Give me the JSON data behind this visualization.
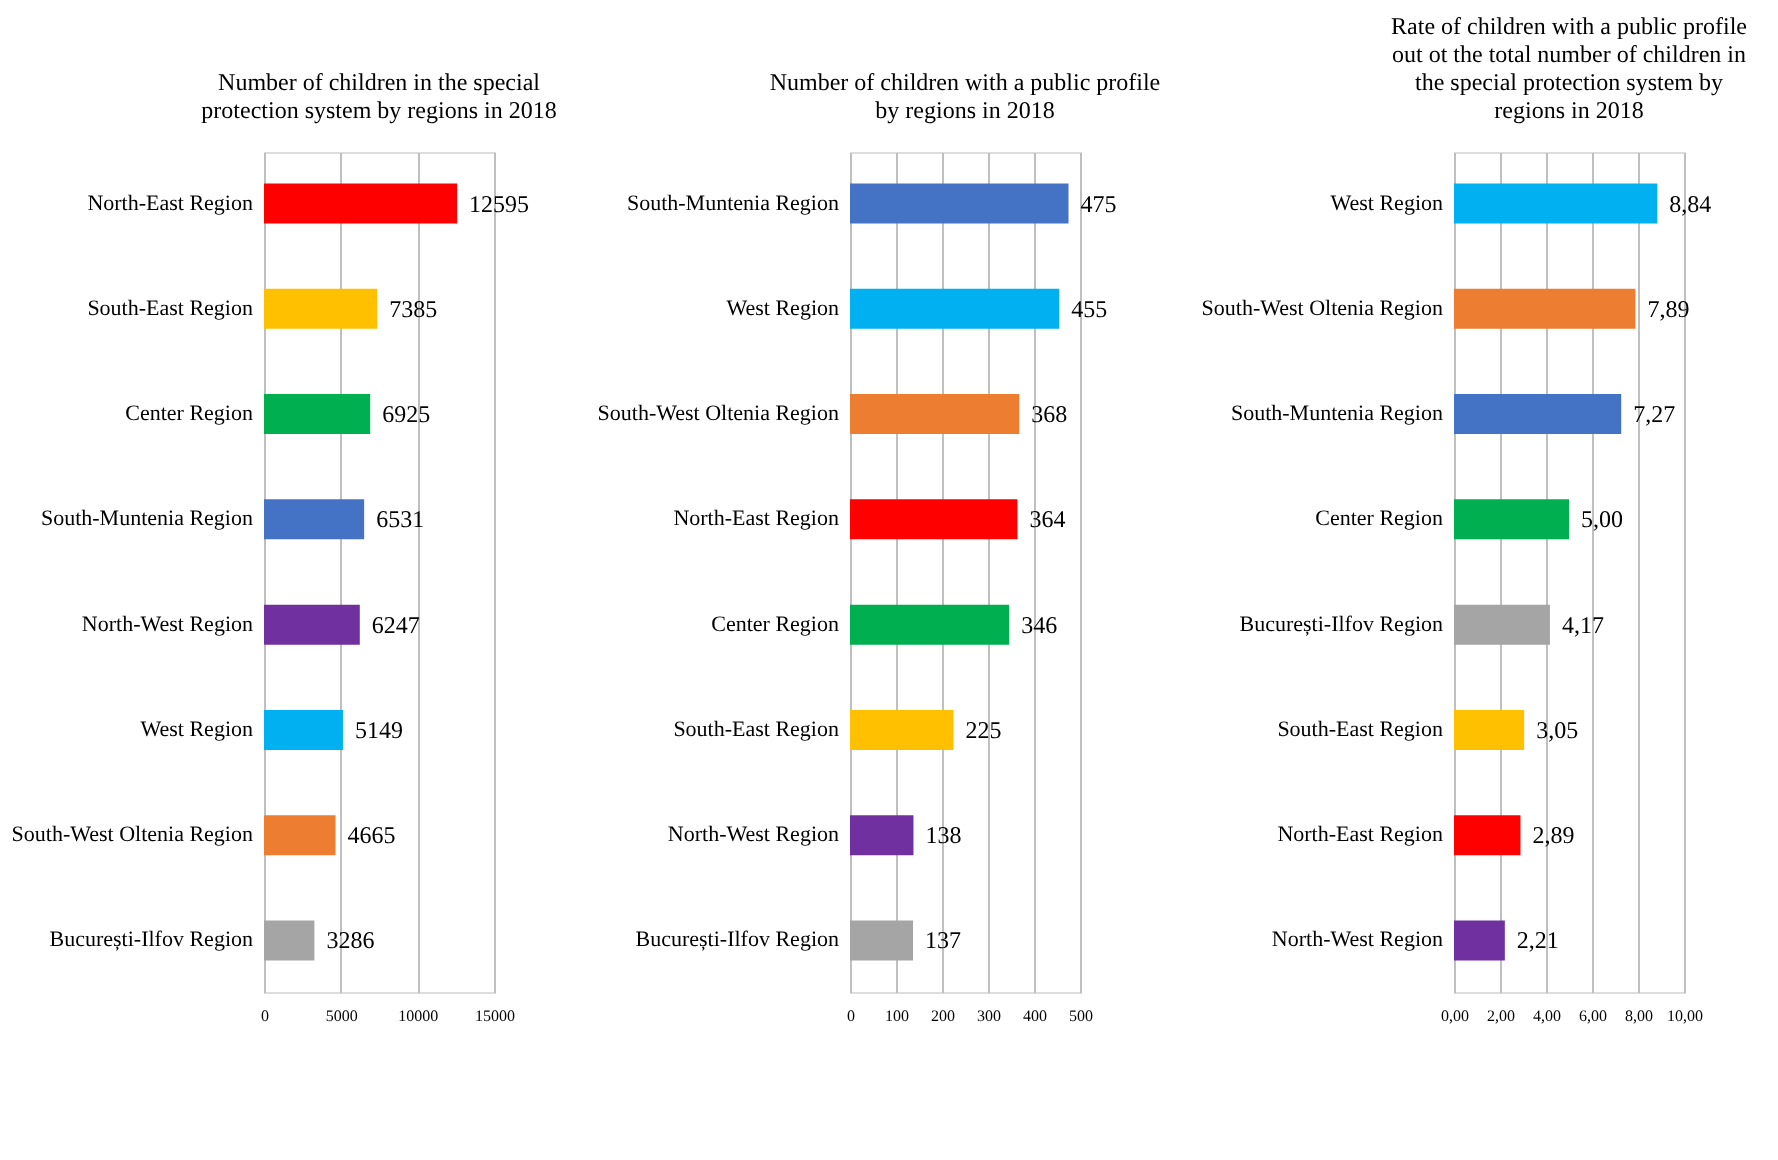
{
  "chart_data": [
    {
      "type": "bar",
      "orientation": "horizontal",
      "title": "Number of children in the special\nprotection system by regions in 2018",
      "categories": [
        "North-East Region",
        "South-East Region",
        "Center Region",
        "South-Muntenia Region",
        "North-West Region",
        "West Region",
        "South-West Oltenia Region",
        "București-Ilfov Region"
      ],
      "values": [
        12595,
        7385,
        6925,
        6531,
        6247,
        5149,
        4665,
        3286
      ],
      "colors": [
        "#ff0000",
        "#ffc000",
        "#00b050",
        "#4472c4",
        "#7030a0",
        "#00b0f0",
        "#ed7d31",
        "#a5a5a5"
      ],
      "xlim": [
        0,
        15000
      ],
      "xticks": [
        0,
        5000,
        10000,
        15000
      ],
      "grid": "x",
      "data_labels": true
    },
    {
      "type": "bar",
      "orientation": "horizontal",
      "title": "Number of children with a public profile\nby regions in 2018",
      "categories": [
        "South-Muntenia Region",
        "West Region",
        "South-West Oltenia Region",
        "North-East Region",
        "Center Region",
        "South-East Region",
        "North-West Region",
        "București-Ilfov Region"
      ],
      "values": [
        475,
        455,
        368,
        364,
        346,
        225,
        138,
        137
      ],
      "colors": [
        "#4472c4",
        "#00b0f0",
        "#ed7d31",
        "#ff0000",
        "#00b050",
        "#ffc000",
        "#7030a0",
        "#a5a5a5"
      ],
      "xlim": [
        0,
        500
      ],
      "xticks": [
        0,
        100,
        200,
        300,
        400,
        500
      ],
      "grid": "x",
      "data_labels": true
    },
    {
      "type": "bar",
      "orientation": "horizontal",
      "title": "Rate of children with a public profile\nout ot the total number of children in\nthe special protection system by\nregions in 2018",
      "categories": [
        "West Region",
        "South-West Oltenia Region",
        "South-Muntenia Region",
        "Center Region",
        "București-Ilfov Region",
        "South-East Region",
        "North-East Region",
        "North-West Region"
      ],
      "values": [
        8.84,
        7.89,
        7.27,
        5.0,
        4.17,
        3.05,
        2.89,
        2.21
      ],
      "value_labels": [
        "8,84",
        "7,89",
        "7,27",
        "5,00",
        "4,17",
        "3,05",
        "2,89",
        "2,21"
      ],
      "colors": [
        "#00b0f0",
        "#ed7d31",
        "#4472c4",
        "#00b050",
        "#a5a5a5",
        "#ffc000",
        "#ff0000",
        "#7030a0"
      ],
      "xlim": [
        0,
        10
      ],
      "xticks": [
        {
          "value": 0,
          "label": "0,00"
        },
        {
          "value": 2,
          "label": "2,00"
        },
        {
          "value": 4,
          "label": "4,00"
        },
        {
          "value": 6,
          "label": "6,00"
        },
        {
          "value": 8,
          "label": "8,00"
        },
        {
          "value": 10,
          "label": "10,00"
        }
      ],
      "grid": "x"
    }
  ]
}
